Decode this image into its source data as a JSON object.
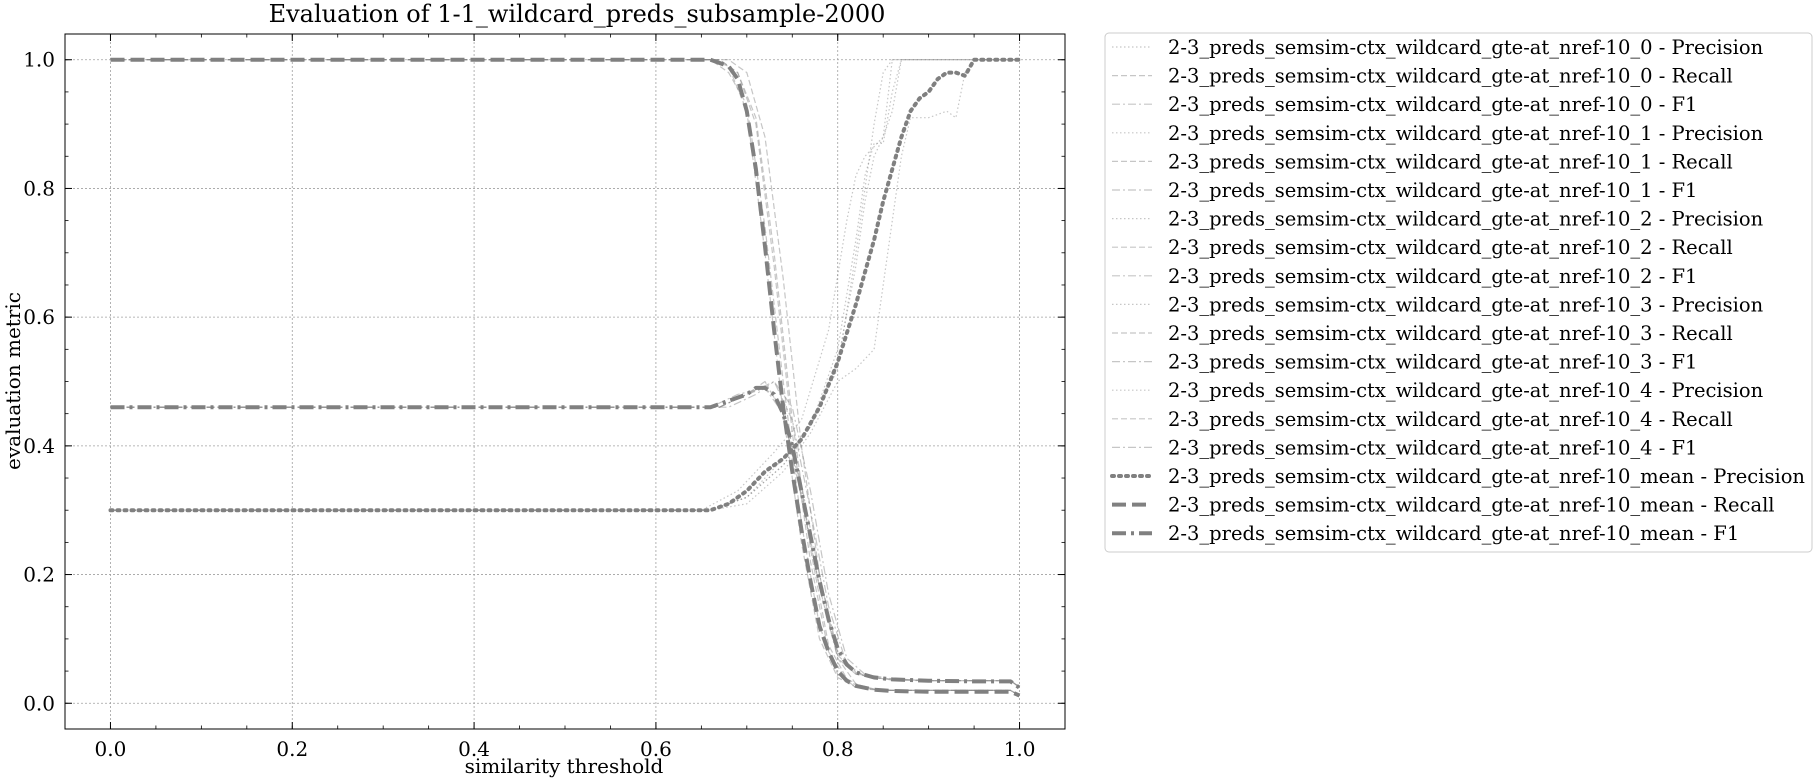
{
  "chart_data": {
    "type": "line",
    "title": "Evaluation of 1-1_wildcard_preds_subsample-2000",
    "xlabel": "similarity threshold",
    "ylabel": "evaluation metric",
    "xlim": [
      -0.05,
      1.05
    ],
    "ylim": [
      -0.04,
      1.04
    ],
    "xticks": [
      "0.0",
      "0.2",
      "0.4",
      "0.6",
      "0.8",
      "1.0"
    ],
    "yticks": [
      "0.0",
      "0.2",
      "0.4",
      "0.6",
      "0.8",
      "1.0"
    ],
    "grid": true,
    "legend_position": "outside-right",
    "line_color": "#808080",
    "runs": [
      {
        "precision": {
          "x": [
            0,
            0.66,
            0.7,
            0.74,
            0.77,
            0.8,
            0.82,
            0.83,
            0.84,
            0.85,
            0.86,
            0.9,
            0.95,
            1.0
          ],
          "y": [
            0.3,
            0.3,
            0.32,
            0.38,
            0.43,
            0.52,
            0.7,
            0.8,
            0.9,
            0.98,
            1.0,
            1.0,
            1.0,
            1.0
          ]
        },
        "recall": {
          "x": [
            0,
            0.66,
            0.68,
            0.7,
            0.72,
            0.74,
            0.76,
            0.78,
            0.8,
            0.82,
            0.85,
            0.9,
            0.95,
            0.99,
            1.0
          ],
          "y": [
            1.0,
            1.0,
            0.99,
            0.92,
            0.7,
            0.45,
            0.25,
            0.1,
            0.04,
            0.025,
            0.02,
            0.02,
            0.02,
            0.02,
            0.012
          ]
        },
        "f1": {
          "x": [
            0,
            0.67,
            0.7,
            0.72,
            0.74,
            0.76,
            0.78,
            0.8,
            0.82,
            0.85,
            0.9,
            0.99,
            1.0
          ],
          "y": [
            0.46,
            0.46,
            0.48,
            0.49,
            0.45,
            0.32,
            0.18,
            0.07,
            0.045,
            0.038,
            0.035,
            0.035,
            0.025
          ]
        }
      },
      {
        "precision": {
          "x": [
            0,
            0.66,
            0.7,
            0.74,
            0.77,
            0.8,
            0.82,
            0.83,
            0.84,
            0.85,
            0.86,
            0.87,
            0.9,
            1.0
          ],
          "y": [
            0.3,
            0.3,
            0.32,
            0.37,
            0.43,
            0.55,
            0.72,
            0.82,
            0.87,
            0.87,
            0.95,
            1.0,
            1.0,
            1.0
          ]
        },
        "recall": {
          "x": [
            0,
            0.67,
            0.69,
            0.71,
            0.73,
            0.75,
            0.77,
            0.79,
            0.81,
            0.83,
            0.85,
            0.9,
            0.99,
            1.0
          ],
          "y": [
            1.0,
            1.0,
            0.98,
            0.9,
            0.68,
            0.42,
            0.22,
            0.08,
            0.035,
            0.022,
            0.02,
            0.02,
            0.02,
            0.012
          ]
        },
        "f1": {
          "x": [
            0,
            0.67,
            0.7,
            0.73,
            0.75,
            0.77,
            0.79,
            0.81,
            0.83,
            0.86,
            0.9,
            0.99,
            1.0
          ],
          "y": [
            0.46,
            0.46,
            0.48,
            0.5,
            0.44,
            0.3,
            0.15,
            0.06,
            0.042,
            0.036,
            0.035,
            0.035,
            0.025
          ]
        }
      },
      {
        "precision": {
          "x": [
            0,
            0.66,
            0.7,
            0.74,
            0.77,
            0.8,
            0.82,
            0.84,
            0.86,
            0.87,
            0.88,
            0.9,
            0.92,
            0.93,
            0.94,
            0.95,
            1.0
          ],
          "y": [
            0.3,
            0.3,
            0.31,
            0.36,
            0.42,
            0.5,
            0.52,
            0.55,
            0.75,
            0.85,
            0.91,
            0.91,
            0.92,
            0.91,
            0.98,
            1.0,
            1.0
          ]
        },
        "recall": {
          "x": [
            0,
            0.68,
            0.7,
            0.72,
            0.74,
            0.76,
            0.78,
            0.8,
            0.82,
            0.84,
            0.86,
            0.9,
            0.99,
            1.0
          ],
          "y": [
            1.0,
            1.0,
            0.98,
            0.88,
            0.66,
            0.4,
            0.2,
            0.07,
            0.03,
            0.022,
            0.02,
            0.02,
            0.02,
            0.012
          ]
        },
        "f1": {
          "x": [
            0,
            0.68,
            0.71,
            0.73,
            0.75,
            0.77,
            0.79,
            0.81,
            0.83,
            0.86,
            0.9,
            0.99,
            1.0
          ],
          "y": [
            0.46,
            0.46,
            0.48,
            0.5,
            0.46,
            0.33,
            0.17,
            0.07,
            0.045,
            0.038,
            0.035,
            0.035,
            0.025
          ]
        }
      },
      {
        "precision": {
          "x": [
            0,
            0.65,
            0.69,
            0.73,
            0.76,
            0.79,
            0.81,
            0.82,
            0.83,
            0.85,
            0.86,
            0.9,
            1.0
          ],
          "y": [
            0.3,
            0.3,
            0.33,
            0.39,
            0.44,
            0.58,
            0.75,
            0.82,
            0.85,
            0.88,
            1.0,
            1.0,
            1.0
          ]
        },
        "recall": {
          "x": [
            0,
            0.66,
            0.68,
            0.7,
            0.72,
            0.74,
            0.76,
            0.78,
            0.8,
            0.82,
            0.85,
            0.9,
            0.99,
            1.0
          ],
          "y": [
            1.0,
            1.0,
            0.98,
            0.93,
            0.74,
            0.5,
            0.28,
            0.12,
            0.045,
            0.025,
            0.02,
            0.02,
            0.02,
            0.012
          ]
        },
        "f1": {
          "x": [
            0,
            0.66,
            0.69,
            0.72,
            0.74,
            0.76,
            0.78,
            0.8,
            0.82,
            0.85,
            0.9,
            0.99,
            1.0
          ],
          "y": [
            0.46,
            0.46,
            0.48,
            0.49,
            0.46,
            0.34,
            0.2,
            0.08,
            0.048,
            0.038,
            0.035,
            0.035,
            0.025
          ]
        }
      },
      {
        "precision": {
          "x": [
            0,
            0.66,
            0.7,
            0.74,
            0.77,
            0.8,
            0.82,
            0.83,
            0.84,
            0.85,
            0.86,
            0.87,
            0.9,
            1.0
          ],
          "y": [
            0.3,
            0.3,
            0.32,
            0.37,
            0.43,
            0.53,
            0.68,
            0.78,
            0.85,
            0.88,
            0.92,
            1.0,
            1.0,
            1.0
          ]
        },
        "recall": {
          "x": [
            0,
            0.67,
            0.69,
            0.71,
            0.73,
            0.75,
            0.77,
            0.79,
            0.81,
            0.83,
            0.86,
            0.9,
            0.99,
            1.0
          ],
          "y": [
            1.0,
            1.0,
            0.98,
            0.91,
            0.7,
            0.44,
            0.24,
            0.09,
            0.038,
            0.023,
            0.02,
            0.02,
            0.02,
            0.012
          ]
        },
        "f1": {
          "x": [
            0,
            0.67,
            0.7,
            0.72,
            0.74,
            0.76,
            0.78,
            0.8,
            0.82,
            0.85,
            0.9,
            0.99,
            1.0
          ],
          "y": [
            0.46,
            0.46,
            0.48,
            0.5,
            0.45,
            0.33,
            0.18,
            0.075,
            0.046,
            0.038,
            0.035,
            0.035,
            0.025
          ]
        }
      }
    ],
    "mean": {
      "precision": {
        "x": [
          0,
          0.66,
          0.68,
          0.7,
          0.72,
          0.74,
          0.76,
          0.78,
          0.8,
          0.82,
          0.84,
          0.85,
          0.86,
          0.87,
          0.88,
          0.89,
          0.9,
          0.91,
          0.92,
          0.93,
          0.94,
          0.95,
          0.97,
          1.0
        ],
        "y": [
          0.3,
          0.3,
          0.31,
          0.33,
          0.36,
          0.38,
          0.41,
          0.46,
          0.53,
          0.62,
          0.72,
          0.78,
          0.83,
          0.88,
          0.92,
          0.94,
          0.95,
          0.97,
          0.98,
          0.98,
          0.975,
          1.0,
          1.0,
          1.0
        ]
      },
      "recall": {
        "x": [
          0,
          0.66,
          0.68,
          0.69,
          0.7,
          0.71,
          0.72,
          0.73,
          0.74,
          0.75,
          0.76,
          0.77,
          0.78,
          0.79,
          0.8,
          0.81,
          0.82,
          0.84,
          0.86,
          0.9,
          0.95,
          0.99,
          1.0
        ],
        "y": [
          1.0,
          1.0,
          0.99,
          0.97,
          0.92,
          0.83,
          0.71,
          0.58,
          0.46,
          0.36,
          0.27,
          0.19,
          0.12,
          0.08,
          0.05,
          0.035,
          0.027,
          0.021,
          0.019,
          0.018,
          0.018,
          0.018,
          0.012
        ]
      },
      "f1": {
        "x": [
          0,
          0.66,
          0.68,
          0.7,
          0.71,
          0.72,
          0.73,
          0.74,
          0.75,
          0.76,
          0.77,
          0.78,
          0.79,
          0.8,
          0.81,
          0.82,
          0.84,
          0.86,
          0.9,
          0.95,
          0.99,
          1.0
        ],
        "y": [
          0.46,
          0.46,
          0.47,
          0.48,
          0.49,
          0.49,
          0.48,
          0.45,
          0.4,
          0.33,
          0.26,
          0.19,
          0.13,
          0.085,
          0.06,
          0.048,
          0.04,
          0.037,
          0.035,
          0.034,
          0.034,
          0.024
        ]
      }
    },
    "legend": [
      "2-3_preds_semsim-ctx_wildcard_gte-at_nref-10_0 - Precision",
      "2-3_preds_semsim-ctx_wildcard_gte-at_nref-10_0 - Recall",
      "2-3_preds_semsim-ctx_wildcard_gte-at_nref-10_0 - F1",
      "2-3_preds_semsim-ctx_wildcard_gte-at_nref-10_1 - Precision",
      "2-3_preds_semsim-ctx_wildcard_gte-at_nref-10_1 - Recall",
      "2-3_preds_semsim-ctx_wildcard_gte-at_nref-10_1 - F1",
      "2-3_preds_semsim-ctx_wildcard_gte-at_nref-10_2 - Precision",
      "2-3_preds_semsim-ctx_wildcard_gte-at_nref-10_2 - Recall",
      "2-3_preds_semsim-ctx_wildcard_gte-at_nref-10_2 - F1",
      "2-3_preds_semsim-ctx_wildcard_gte-at_nref-10_3 - Precision",
      "2-3_preds_semsim-ctx_wildcard_gte-at_nref-10_3 - Recall",
      "2-3_preds_semsim-ctx_wildcard_gte-at_nref-10_3 - F1",
      "2-3_preds_semsim-ctx_wildcard_gte-at_nref-10_4 - Precision",
      "2-3_preds_semsim-ctx_wildcard_gte-at_nref-10_4 - Recall",
      "2-3_preds_semsim-ctx_wildcard_gte-at_nref-10_4 - F1",
      "2-3_preds_semsim-ctx_wildcard_gte-at_nref-10_mean - Precision",
      "2-3_preds_semsim-ctx_wildcard_gte-at_nref-10_mean - Recall",
      "2-3_preds_semsim-ctx_wildcard_gte-at_nref-10_mean - F1"
    ]
  }
}
